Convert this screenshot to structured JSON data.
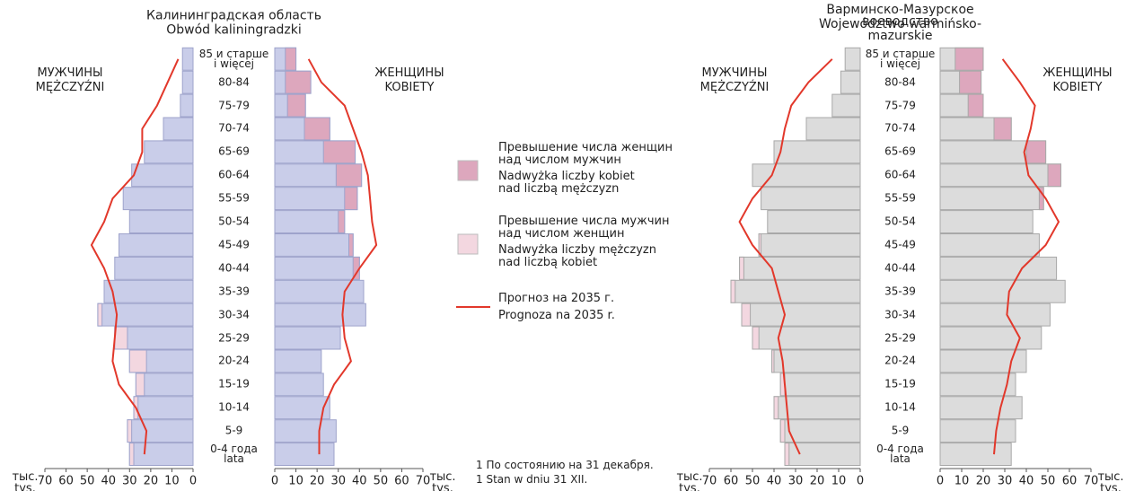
{
  "chart_data": [
    {
      "type": "pyramid",
      "title": "Калининградская область",
      "subtitle": "Obwód kaliningradzki",
      "categories": [
        "0-4 года\nlata",
        "5-9",
        "10-14",
        "15-19",
        "20-24",
        "25-29",
        "30-34",
        "35-39",
        "40-44",
        "45-49",
        "50-54",
        "55-59",
        "60-64",
        "65-69",
        "70-74",
        "75-79",
        "80-84",
        "85 и старше\ni więcej"
      ],
      "xlim": [
        0,
        70
      ],
      "xticks": [
        0,
        10,
        20,
        30,
        40,
        50,
        60,
        70
      ],
      "unit": "тыс.\ntys.",
      "bar_color": "#c9cde9",
      "bar_border": "#9ea3cb",
      "series": [
        {
          "name": "МУЖЧИНЫ\nMĘŻCZYŹNI",
          "side": "left",
          "values": [
            30,
            31,
            28,
            27,
            30,
            37,
            45,
            42,
            37,
            35,
            30,
            33,
            29,
            23,
            14,
            6,
            5,
            5
          ]
        },
        {
          "name": "ЖЕНЩИНЫ\nKOBIETY",
          "side": "right",
          "values": [
            28,
            29,
            26,
            23,
            22,
            31,
            43,
            42,
            40,
            37,
            33,
            39,
            41,
            38,
            26,
            14.5,
            17,
            10
          ]
        },
        {
          "side": "left",
          "color": "#e2382b",
          "values": [
            23,
            22,
            27,
            35,
            38,
            37,
            36,
            38,
            42,
            48,
            42,
            38,
            28,
            24,
            24,
            17,
            12,
            7
          ]
        },
        {
          "side": "right",
          "color": "#e2382b",
          "values": [
            21,
            21,
            23,
            28,
            36,
            33,
            32,
            33,
            40,
            48,
            46,
            45,
            44,
            41,
            37,
            33,
            22,
            16
          ]
        }
      ]
    },
    {
      "type": "pyramid",
      "title": "Варминско-Мазурское воеводство",
      "subtitle": "Województwo warmińsko-mazurskie",
      "categories": [
        "0-4 года\nlata",
        "5-9",
        "10-14",
        "15-19",
        "20-24",
        "25-29",
        "30-34",
        "35-39",
        "40-44",
        "45-49",
        "50-54",
        "55-59",
        "60-64",
        "65-69",
        "70-74",
        "75-79",
        "80-84",
        "85 и старше\ni więcej"
      ],
      "xlim": [
        0,
        70
      ],
      "xticks": [
        0,
        10,
        20,
        30,
        40,
        50,
        60,
        70
      ],
      "unit": "тыс.\ntys.",
      "bar_color": "#dcdcdc",
      "bar_border": "#a8a8a8",
      "series": [
        {
          "name": "МУЖЧИНЫ\nMĘŻCZYŹNI",
          "side": "left",
          "values": [
            35,
            37,
            40,
            37,
            41,
            50,
            55,
            60,
            56,
            47,
            43,
            46,
            50,
            40,
            25,
            13,
            9,
            7
          ]
        },
        {
          "name": "ЖЕНЩИНЫ\nKOBIETY",
          "side": "right",
          "values": [
            33,
            35,
            38,
            35,
            40,
            47,
            51,
            58,
            54,
            46,
            43,
            48,
            56,
            49,
            33,
            20,
            19,
            20
          ]
        },
        {
          "side": "left",
          "color": "#e2382b",
          "values": [
            28,
            33,
            34,
            35,
            36,
            38,
            35,
            38,
            41,
            50,
            56,
            50,
            41,
            37,
            35,
            32,
            24,
            13
          ]
        },
        {
          "side": "right",
          "color": "#e2382b",
          "values": [
            25,
            26,
            28,
            31,
            33,
            37,
            31,
            32,
            38,
            49,
            55,
            49,
            41,
            39,
            42,
            44,
            37,
            29
          ]
        }
      ]
    }
  ],
  "legend": [
    {
      "color": "#dda7bd",
      "labels": [
        "Превышение числа женщин\nнад числом мужчин",
        "Nadwyżka liczby kobiet\nnad liczbą mężczyzn"
      ]
    },
    {
      "color": "#f3d7e0",
      "labels": [
        "Превышение числа мужчин\nнад числом женщин",
        "Nadwyżka liczby mężczyzn\nnad liczbą kobiet"
      ]
    },
    {
      "color": "#e2382b",
      "labels": [
        "Прогноз на 2035 г.",
        "Prognoza na 2035 r."
      ]
    }
  ],
  "footnotes": [
    "1  По состоянию на 31 декабря.",
    "1  Stan w dniu 31 XII."
  ]
}
